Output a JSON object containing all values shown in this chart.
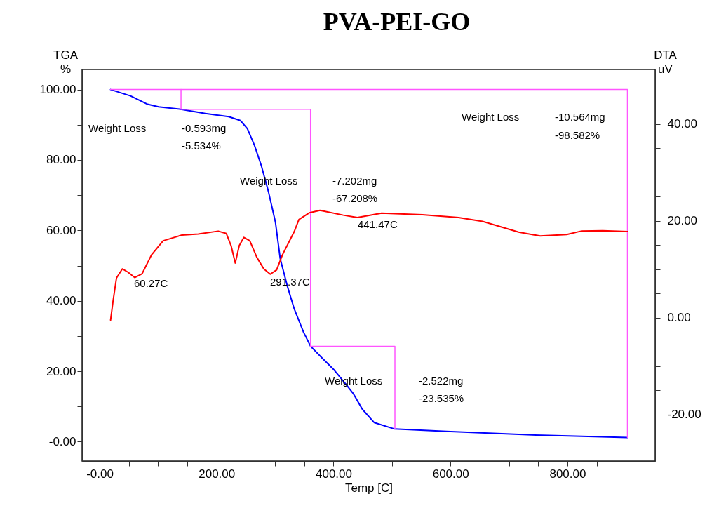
{
  "chart_data": {
    "type": "line",
    "title": "PVA-PEI-GO",
    "xlabel": "Temp  [C]",
    "ylabel": "TGA\n%",
    "y2label": "DTA\nuV",
    "xlim": [
      -30,
      950
    ],
    "ylim": [
      -5.5,
      105.7
    ],
    "y2lim": [
      -29.6,
      51.3
    ],
    "xticks": [
      {
        "value": 0,
        "label": "-0.00"
      },
      {
        "value": 50,
        "label": null
      },
      {
        "value": 100,
        "label": null
      },
      {
        "value": 150,
        "label": null
      },
      {
        "value": 200,
        "label": "200.00"
      },
      {
        "value": 250,
        "label": null
      },
      {
        "value": 300,
        "label": null
      },
      {
        "value": 350,
        "label": null
      },
      {
        "value": 400,
        "label": "400.00"
      },
      {
        "value": 450,
        "label": null
      },
      {
        "value": 500,
        "label": null
      },
      {
        "value": 550,
        "label": null
      },
      {
        "value": 600,
        "label": "600.00"
      },
      {
        "value": 650,
        "label": null
      },
      {
        "value": 700,
        "label": null
      },
      {
        "value": 750,
        "label": null
      },
      {
        "value": 800,
        "label": "800.00"
      },
      {
        "value": 850,
        "label": null
      },
      {
        "value": 900,
        "label": null
      }
    ],
    "yticks": [
      {
        "value": 0,
        "label": "-0.00"
      },
      {
        "value": 10,
        "label": null
      },
      {
        "value": 20,
        "label": "20.00"
      },
      {
        "value": 30,
        "label": null
      },
      {
        "value": 40,
        "label": "40.00"
      },
      {
        "value": 50,
        "label": null
      },
      {
        "value": 60,
        "label": "60.00"
      },
      {
        "value": 70,
        "label": null
      },
      {
        "value": 80,
        "label": "80.00"
      },
      {
        "value": 90,
        "label": null
      },
      {
        "value": 100,
        "label": "100.00"
      }
    ],
    "y2ticks": [
      {
        "value": -25,
        "label": null
      },
      {
        "value": -20,
        "label": "-20.00"
      },
      {
        "value": -15,
        "label": null
      },
      {
        "value": -10,
        "label": null
      },
      {
        "value": -5,
        "label": null
      },
      {
        "value": 0,
        "label": "0.00"
      },
      {
        "value": 5,
        "label": null
      },
      {
        "value": 10,
        "label": null
      },
      {
        "value": 15,
        "label": null
      },
      {
        "value": 20,
        "label": "20.00"
      },
      {
        "value": 25,
        "label": null
      },
      {
        "value": 30,
        "label": null
      },
      {
        "value": 35,
        "label": null
      },
      {
        "value": 40,
        "label": "40.00"
      },
      {
        "value": 45,
        "label": null
      },
      {
        "value": 50,
        "label": null
      }
    ],
    "grid": false,
    "marker": "none",
    "series": [
      {
        "type": "line",
        "color": "#0000ff",
        "x": [
          18.7,
          52.8,
          80.8,
          100.8,
          138.7,
          180.7,
          220.8,
          240.7,
          252.7,
          264.7,
          276.7,
          288.7,
          300.7,
          308.8,
          320.8,
          332.8,
          348.7,
          360.7,
          380.8,
          400.8,
          420.7,
          434,
          449.3,
          469.8,
          504.6,
          593,
          757,
          902.6
        ],
        "values": [
          100,
          98.2,
          95.9,
          95.1,
          94.4,
          93.2,
          92.3,
          91.2,
          88.9,
          84.2,
          78.3,
          71,
          62.3,
          52,
          44.3,
          37.7,
          31.1,
          27.1,
          23.7,
          20.4,
          16.4,
          13.6,
          9.2,
          5.4,
          3.6,
          2.9,
          1.8,
          1.2
        ]
      },
      {
        "type": "line",
        "color": "#ff0000",
        "axis": "y2",
        "x": [
          18.7,
          22.8,
          28.8,
          38.8,
          48.7,
          60,
          72.7,
          88.8,
          108.7,
          140.8,
          168.7,
          202.8,
          216.7,
          224.8,
          232,
          238.8,
          246.7,
          256.8,
          268.8,
          280.8,
          291.9,
          302.7,
          312.7,
          332.8,
          340.8,
          358.8,
          376.8,
          416.8,
          440.8,
          482.2,
          552,
          613.7,
          654.9,
          716.4,
          753.4,
          798.6,
          823.3,
          860.3,
          903.4
        ],
        "values": [
          -0.5,
          3.3,
          8.2,
          10.1,
          9.4,
          8.3,
          9.1,
          13,
          15.9,
          17.1,
          17.3,
          17.9,
          17.4,
          14.9,
          11.3,
          14.9,
          16.6,
          15.9,
          12.5,
          10.1,
          9,
          9.9,
          13,
          17.8,
          20.3,
          21.7,
          22.2,
          21.2,
          20.7,
          21.6,
          21.3,
          20.7,
          19.9,
          17.7,
          16.9,
          17.2,
          17.9,
          18,
          17.8
        ]
      },
      {
        "type": "line",
        "color": "#ff55ff",
        "x": [
          18.7,
          902.6,
          902.6
        ],
        "values": [
          100,
          100,
          1.2
        ]
      },
      {
        "type": "line",
        "color": "#ff55ff",
        "x": [
          139.2,
          139.2,
          360.7,
          360.7,
          505,
          505
        ],
        "values": [
          100,
          94.4,
          94.4,
          27.1,
          27.1,
          3.6
        ]
      }
    ],
    "annotations": [
      "Weight Loss",
      "-0.593mg",
      "-5.534%",
      "Weight Loss",
      "-7.202mg",
      "-67.208%",
      "Weight Loss",
      "-2.522mg",
      "-23.535%",
      "Weight Loss",
      "-10.564mg",
      "-98.582%",
      "60.27C",
      "291.37C",
      "441.47C"
    ]
  }
}
